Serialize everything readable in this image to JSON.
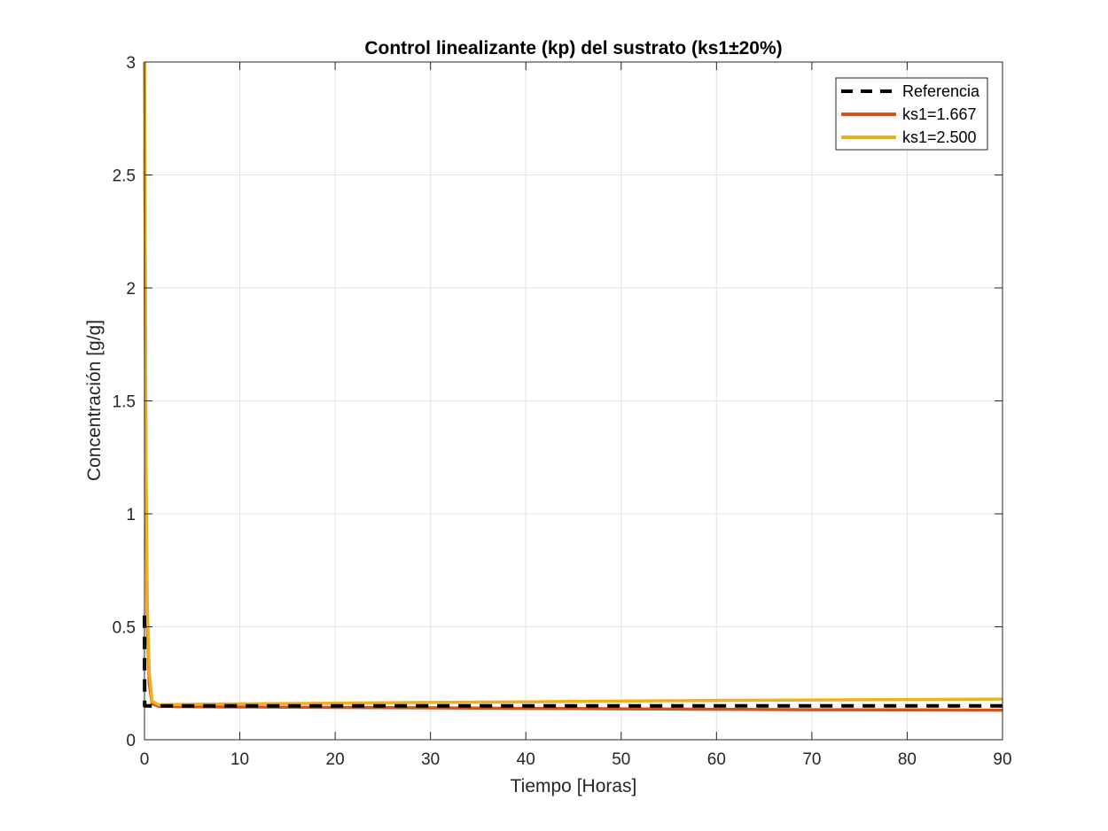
{
  "chart_data": {
    "type": "line",
    "title": "Control linealizante (kp) del sustrato (ks1±20%)",
    "xlabel": "Tiempo [Horas]",
    "ylabel": "Concentración [g/g]",
    "xlim": [
      0,
      90
    ],
    "ylim": [
      0,
      3
    ],
    "xticks": [
      0,
      10,
      20,
      30,
      40,
      50,
      60,
      70,
      80,
      90
    ],
    "xtick_labels": [
      "0",
      "10",
      "20",
      "30",
      "40",
      "50",
      "60",
      "70",
      "80",
      "90"
    ],
    "yticks": [
      0,
      0.5,
      1,
      1.5,
      2,
      2.5,
      3
    ],
    "ytick_labels": [
      "0",
      "0.5",
      "1",
      "1.5",
      "2",
      "2.5",
      "3"
    ],
    "grid": true,
    "legend_position": "top-right",
    "series": [
      {
        "name": "Referencia",
        "color": "#000000",
        "style": "dashed",
        "x": [
          0,
          0.02,
          90
        ],
        "y": [
          0.55,
          0.15,
          0.15
        ]
      },
      {
        "name": "ks1=1.667",
        "color": "#D95319",
        "style": "solid",
        "x": [
          0,
          0.05,
          0.15,
          0.3,
          0.5,
          0.8,
          1.5,
          5,
          10,
          20,
          30,
          40,
          50,
          60,
          70,
          80,
          90
        ],
        "y": [
          3.0,
          2.5,
          1.2,
          0.5,
          0.25,
          0.16,
          0.148,
          0.146,
          0.145,
          0.143,
          0.141,
          0.139,
          0.137,
          0.135,
          0.133,
          0.132,
          0.131
        ]
      },
      {
        "name": "ks1=2.500",
        "color": "#EDB120",
        "style": "solid",
        "x": [
          0,
          0.05,
          0.15,
          0.3,
          0.5,
          0.8,
          1.5,
          5,
          10,
          20,
          30,
          40,
          50,
          60,
          70,
          80,
          90
        ],
        "y": [
          3.0,
          2.5,
          1.3,
          0.6,
          0.3,
          0.17,
          0.155,
          0.157,
          0.159,
          0.162,
          0.165,
          0.168,
          0.171,
          0.174,
          0.176,
          0.178,
          0.18
        ]
      }
    ]
  }
}
